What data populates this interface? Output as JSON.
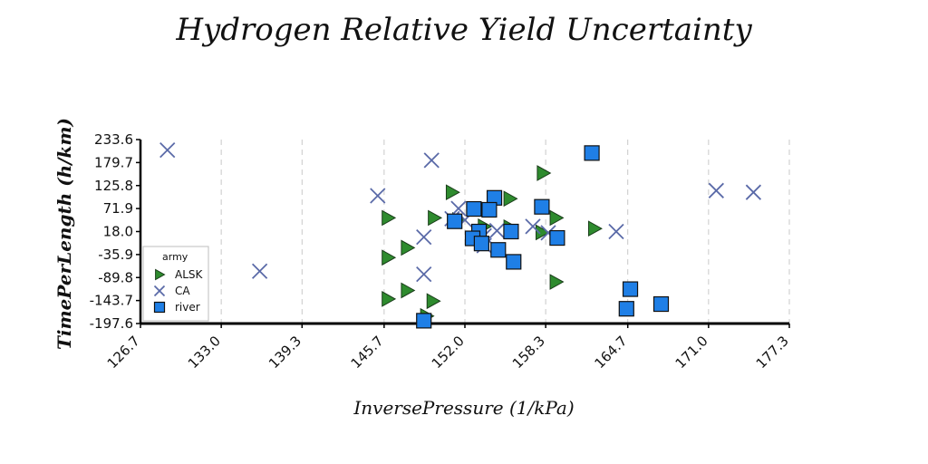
{
  "chart_data": {
    "type": "scatter",
    "title": "Hydrogen Relative Yield Uncertainty",
    "xlabel": "InversePressure (1/kPa)",
    "ylabel": "TimePerLength (h/km)",
    "xlim": [
      126.7,
      177.3
    ],
    "ylim": [
      -197.6,
      233.6
    ],
    "x_ticks": [
      "126.7",
      "133.0",
      "139.3",
      "145.7",
      "152.0",
      "158.3",
      "164.7",
      "171.0",
      "177.3"
    ],
    "y_ticks": [
      "233.6",
      "179.7",
      "125.8",
      "71.9",
      "18.0",
      "-35.9",
      "-89.8",
      "-143.7",
      "-197.6"
    ],
    "grid": "vertical dashed",
    "legend": {
      "title": "army",
      "position": "left"
    },
    "colors": {
      "ALSK": "#2e8b2e",
      "CA": "#5a6aa8",
      "river": "#1f7fe6"
    },
    "series": [
      {
        "name": "ALSK",
        "marker": "triangle-right",
        "points": [
          [
            146.0,
            50.0
          ],
          [
            146.0,
            -43.0
          ],
          [
            146.0,
            -140.0
          ],
          [
            147.5,
            -20.0
          ],
          [
            147.5,
            -120.0
          ],
          [
            149.6,
            50.0
          ],
          [
            149.5,
            -145.0
          ],
          [
            149.0,
            -180.0
          ],
          [
            151.0,
            110.0
          ],
          [
            151.5,
            45.0
          ],
          [
            153.5,
            30.0
          ],
          [
            155.5,
            95.0
          ],
          [
            155.5,
            28.0
          ],
          [
            158.1,
            155.0
          ],
          [
            158.0,
            16.0
          ],
          [
            159.1,
            50.0
          ],
          [
            159.1,
            -100.0
          ],
          [
            162.1,
            25.0
          ]
        ]
      },
      {
        "name": "CA",
        "marker": "x",
        "points": [
          [
            128.8,
            209.0
          ],
          [
            136.0,
            -75.0
          ],
          [
            145.2,
            102.0
          ],
          [
            148.8,
            5.0
          ],
          [
            148.8,
            -82.0
          ],
          [
            149.4,
            185.0
          ],
          [
            151.0,
            48.0
          ],
          [
            151.5,
            72.0
          ],
          [
            152.0,
            45.0
          ],
          [
            153.5,
            8.0
          ],
          [
            153.5,
            -15.0
          ],
          [
            154.5,
            20.0
          ],
          [
            157.3,
            30.0
          ],
          [
            158.5,
            15.0
          ],
          [
            163.8,
            18.0
          ],
          [
            171.6,
            114.0
          ],
          [
            174.5,
            110.0
          ]
        ]
      },
      {
        "name": "river",
        "marker": "square",
        "points": [
          [
            161.9,
            202.0
          ],
          [
            154.3,
            97.0
          ],
          [
            152.7,
            71.0
          ],
          [
            153.9,
            69.0
          ],
          [
            158.0,
            76.0
          ],
          [
            151.2,
            42.0
          ],
          [
            153.1,
            18.0
          ],
          [
            155.6,
            18.0
          ],
          [
            152.6,
            2.0
          ],
          [
            153.3,
            -10.0
          ],
          [
            159.2,
            3.0
          ],
          [
            154.6,
            -25.0
          ],
          [
            155.8,
            -53.0
          ],
          [
            164.9,
            -117.0
          ],
          [
            164.6,
            -163.0
          ],
          [
            167.3,
            -152.0
          ],
          [
            148.8,
            -191.0
          ]
        ]
      }
    ]
  }
}
